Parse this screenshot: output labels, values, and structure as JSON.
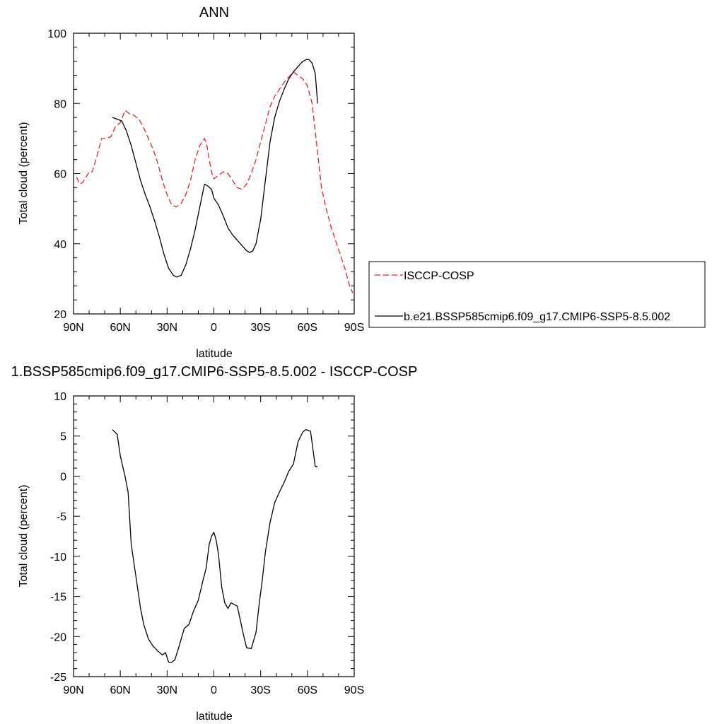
{
  "chart_data": [
    {
      "type": "line",
      "title": "ANN",
      "xlabel": "latitude",
      "ylabel": "Total cloud (percent)",
      "xlim": [
        90,
        -90
      ],
      "ylim": [
        20,
        100
      ],
      "x_ticks": [
        {
          "value": 90,
          "label": "90N"
        },
        {
          "value": 60,
          "label": "60N"
        },
        {
          "value": 30,
          "label": "30N"
        },
        {
          "value": 0,
          "label": "0"
        },
        {
          "value": -30,
          "label": "30S"
        },
        {
          "value": -60,
          "label": "60S"
        },
        {
          "value": -90,
          "label": "90S"
        }
      ],
      "y_ticks": [
        20,
        40,
        60,
        80,
        100
      ],
      "legend": "right",
      "series": [
        {
          "name": "ISCCP-COSP",
          "color": "#e8222a",
          "dash": "dashed",
          "x": [
            88,
            86,
            84,
            82,
            80,
            78,
            75,
            72,
            69,
            66,
            63,
            60,
            57,
            54,
            51,
            48,
            45,
            42,
            39,
            36,
            33,
            30,
            27,
            24,
            21,
            18,
            15,
            12,
            9,
            6,
            4.5,
            3,
            1.5,
            0,
            -1.5,
            -3,
            -6,
            -9,
            -12,
            -15,
            -18,
            -21,
            -24,
            -27,
            -30,
            -33,
            -36,
            -39,
            -42,
            -45,
            -48,
            -51,
            -54,
            -57,
            -60,
            -63,
            -66,
            -69,
            -72,
            -75,
            -78,
            -81,
            -84,
            -87,
            -89
          ],
          "y": [
            59,
            57,
            57.5,
            59,
            60.5,
            60.5,
            65,
            70,
            70,
            70.5,
            73.5,
            74.5,
            78,
            77,
            76.5,
            75.5,
            73,
            70,
            67,
            63,
            58,
            54,
            51,
            50.5,
            51.5,
            54,
            58,
            64,
            68,
            70,
            68,
            64,
            60.5,
            58.5,
            59,
            59.5,
            60.5,
            60,
            58,
            56,
            55.5,
            57,
            60,
            64,
            69,
            74,
            79,
            82,
            84,
            86,
            87.5,
            89,
            88,
            87,
            85,
            80,
            68,
            56,
            50,
            45,
            41,
            37,
            33,
            28,
            26
          ]
        },
        {
          "name": "b.e21.BSSP585cmip6.f09_g17.CMIP6-SSP5-8.5.002",
          "color": "#000000",
          "dash": "solid",
          "x": [
            65,
            62,
            59,
            56,
            53,
            50,
            47,
            44,
            41,
            38,
            35,
            32,
            29,
            26,
            24,
            21,
            18,
            15,
            12,
            9,
            6,
            4,
            1.5,
            0,
            -1.5,
            -3,
            -6,
            -9,
            -12,
            -15,
            -18,
            -21,
            -23,
            -25,
            -27,
            -30,
            -33,
            -36,
            -39,
            -42,
            -45,
            -48,
            -51,
            -54,
            -57,
            -59.5,
            -61,
            -63,
            -65,
            -66.5
          ],
          "y": [
            76,
            75.5,
            75,
            72,
            68,
            63,
            58,
            54,
            50.5,
            46.5,
            42,
            37,
            33,
            31,
            30.5,
            31,
            34,
            38.5,
            44,
            50.5,
            57,
            56.5,
            55.5,
            53,
            52,
            51,
            48,
            44.5,
            42.5,
            41,
            39.5,
            38,
            37.5,
            38,
            40,
            47,
            58,
            69,
            76,
            80.5,
            84,
            87,
            89,
            90.5,
            92,
            92.5,
            92.5,
            91.5,
            88.5,
            80
          ]
        }
      ]
    },
    {
      "type": "line",
      "title": "1.BSSP585cmip6.f09_g17.CMIP6-SSP5-8.5.002 - ISCCP-COSP",
      "xlabel": "latitude",
      "ylabel": "Total cloud (percent)",
      "xlim": [
        90,
        -90
      ],
      "ylim": [
        -25,
        10
      ],
      "x_ticks": [
        {
          "value": 90,
          "label": "90N"
        },
        {
          "value": 60,
          "label": "60N"
        },
        {
          "value": 30,
          "label": "30N"
        },
        {
          "value": 0,
          "label": "0"
        },
        {
          "value": -30,
          "label": "30S"
        },
        {
          "value": -60,
          "label": "60S"
        },
        {
          "value": -90,
          "label": "90S"
        }
      ],
      "y_ticks": [
        -25,
        -20,
        -15,
        -10,
        -5,
        0,
        5,
        10
      ],
      "series": [
        {
          "color": "#000000",
          "dash": "solid",
          "x": [
            65,
            62,
            60,
            57,
            55,
            53,
            50,
            47,
            45,
            42,
            39,
            36,
            33,
            31,
            29,
            27,
            25,
            22,
            19,
            16,
            13,
            10,
            7,
            5,
            3,
            1.5,
            0,
            -1.5,
            -3,
            -5,
            -7,
            -9,
            -11,
            -13,
            -15,
            -17,
            -19,
            -21,
            -24,
            -27,
            -29,
            -31,
            -33,
            -36,
            -39,
            -42,
            -45,
            -48,
            -51,
            -54,
            -57,
            -59,
            -62,
            -65,
            -66.5
          ],
          "y": [
            5.8,
            5.2,
            2.5,
            0,
            -2,
            -8.5,
            -12.5,
            -16.5,
            -18.5,
            -20.3,
            -21.2,
            -21.8,
            -22.3,
            -22,
            -23.2,
            -23.2,
            -22.9,
            -21,
            -19,
            -18.5,
            -16.8,
            -15.5,
            -13,
            -11.5,
            -8.5,
            -7.5,
            -7,
            -8,
            -9.8,
            -13.8,
            -15.8,
            -16.5,
            -15.8,
            -16,
            -16.2,
            -18,
            -19.8,
            -21.4,
            -21.5,
            -19.5,
            -16,
            -13,
            -9.5,
            -5.8,
            -3.3,
            -2,
            -0.8,
            0.6,
            1.5,
            4.3,
            5.5,
            5.8,
            5.6,
            1.2,
            1.2
          ]
        }
      ]
    }
  ]
}
